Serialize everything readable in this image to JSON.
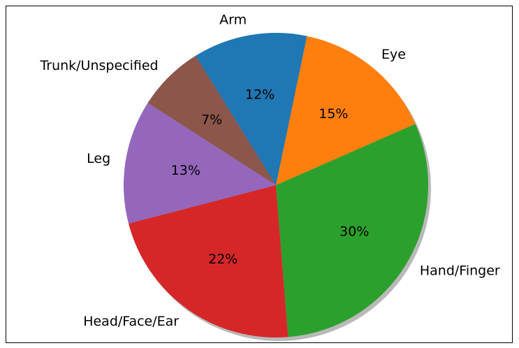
{
  "chart_data": {
    "type": "pie",
    "categories": [
      "Eye",
      "Arm",
      "Trunk/Unspecified",
      "Leg",
      "Head/Face/Ear",
      "Hand/Finger"
    ],
    "values": [
      15,
      12,
      7,
      13,
      22,
      30
    ],
    "value_labels": [
      "15%",
      "12%",
      "7%",
      "13%",
      "22%",
      "30%"
    ],
    "colors": [
      "#ff7f0e",
      "#1f77b4",
      "#8c564b",
      "#9467bd",
      "#d62728",
      "#2ca02c"
    ],
    "shadow": true
  }
}
